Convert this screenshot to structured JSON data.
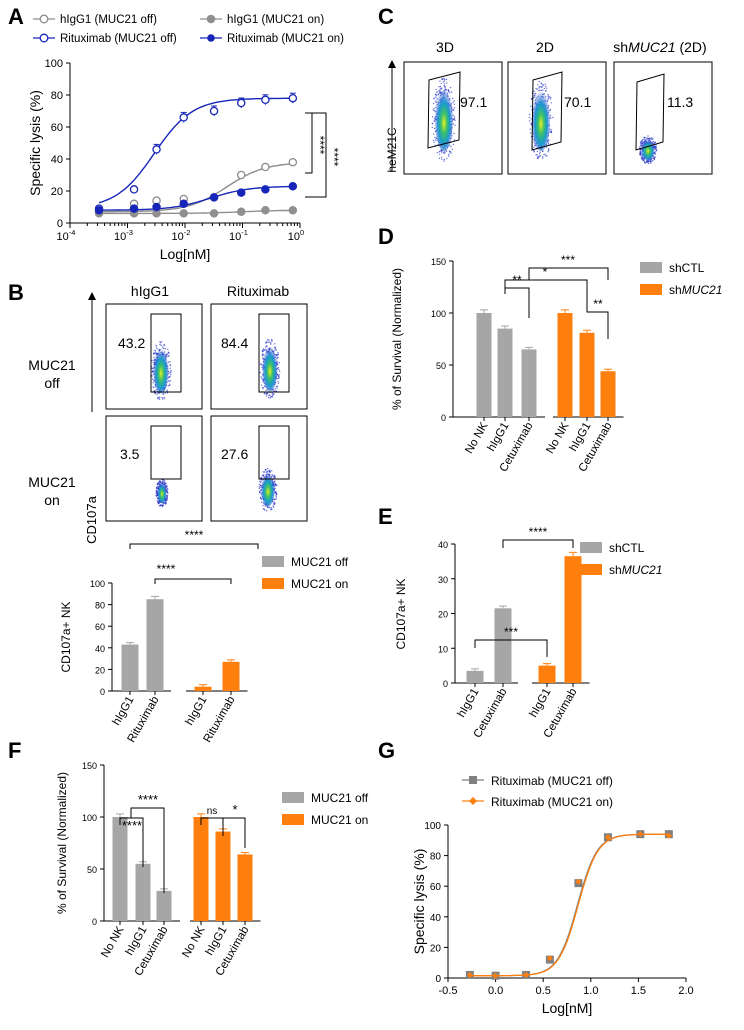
{
  "colors": {
    "grey": "#a6a6a6",
    "orange": "#ff7f0e",
    "navy": "#1726b8",
    "hollow_grey": "#8c8c8c",
    "filled_grey": "#8f8f8f",
    "curve_grey": "#808080"
  },
  "panel_letters": {
    "A": "A",
    "B": "B",
    "C": "C",
    "D": "D",
    "E": "E",
    "F": "F",
    "G": "G"
  },
  "chart_data": [
    {
      "id": "A",
      "type": "line",
      "xscale": "log",
      "xlabel": "Log[nM]",
      "ylabel": "Specific lysis (%)",
      "xlim": [
        0.0001,
        1
      ],
      "ylim": [
        0,
        100
      ],
      "xticks": [
        "10",
        "10",
        "10",
        "10",
        "10"
      ],
      "xtick_exponents": [
        "-4",
        "-3",
        "-2",
        "-1",
        "0"
      ],
      "yticks": [
        "0",
        "20",
        "40",
        "60",
        "80",
        "100"
      ],
      "series": [
        {
          "name": "hIgG1 (MUC21 off)",
          "marker": "hollow",
          "color": "#8c8c8c",
          "x": [
            0.00032,
            0.0013,
            0.0032,
            0.0095,
            0.032,
            0.095,
            0.25,
            0.75
          ],
          "y": [
            7,
            12,
            14,
            15,
            16,
            30,
            35,
            38
          ]
        },
        {
          "name": "hIgG1 (MUC21 on)",
          "marker": "filled",
          "color": "#8f8f8f",
          "x": [
            0.00032,
            0.0013,
            0.0032,
            0.0095,
            0.032,
            0.095,
            0.25,
            0.75
          ],
          "y": [
            6,
            6,
            6,
            6,
            6,
            7,
            8,
            8
          ]
        },
        {
          "name": "Rituximab (MUC21 off)",
          "marker": "hollow",
          "color": "#1726b8",
          "x": [
            0.00032,
            0.0013,
            0.0032,
            0.0095,
            0.032,
            0.095,
            0.25,
            0.75
          ],
          "y": [
            9,
            21,
            46,
            66,
            70,
            75,
            77,
            78
          ]
        },
        {
          "name": "Rituximab (MUC21 on)",
          "marker": "filled",
          "color": "#1726b8",
          "x": [
            0.00032,
            0.0013,
            0.0032,
            0.0095,
            0.032,
            0.095,
            0.25,
            0.75
          ],
          "y": [
            8,
            9,
            10,
            12,
            16,
            19,
            21,
            23
          ]
        }
      ],
      "significance": [
        "****",
        "****"
      ]
    },
    {
      "id": "B-bar",
      "type": "bar",
      "ylabel": "CD107a+ NK",
      "ylim": [
        0,
        100
      ],
      "yticks": [
        "0",
        "20",
        "40",
        "60",
        "80",
        "100"
      ],
      "categories": [
        "hIgG1",
        "Rituximab",
        "hIgG1",
        "Rituximab"
      ],
      "values": [
        43,
        85,
        4,
        27
      ],
      "groups": [
        "MUC21 off",
        "MUC21 off",
        "MUC21 on",
        "MUC21 on"
      ],
      "legend": [
        "MUC21 off",
        "MUC21 on"
      ],
      "significance": [
        "****",
        "****"
      ]
    },
    {
      "id": "D",
      "type": "bar",
      "ylabel": "% of Survival (Normalized)",
      "ylim": [
        0,
        150
      ],
      "yticks": [
        "0",
        "50",
        "100",
        "150"
      ],
      "categories": [
        "No NK",
        "hIgG1",
        "Cetuximab",
        "No NK",
        "hIgG1",
        "Cetuximab"
      ],
      "values": [
        100,
        85,
        65,
        100,
        81,
        44
      ],
      "groups": [
        "shCTL",
        "shCTL",
        "shCTL",
        "shMUC21",
        "shMUC21",
        "shMUC21"
      ],
      "legend": [
        {
          "prefix": "shCTL",
          "italic": ""
        },
        {
          "prefix": "sh",
          "italic": "MUC21"
        }
      ],
      "significance": [
        "**",
        "*",
        "***",
        "**"
      ]
    },
    {
      "id": "E",
      "type": "bar",
      "ylabel": "CD107a+ NK",
      "ylim": [
        0,
        40
      ],
      "yticks": [
        "0",
        "10",
        "20",
        "30",
        "40"
      ],
      "categories": [
        "hIgG1",
        "Cetuximab",
        "hIgG1",
        "Cetuximab"
      ],
      "values": [
        3.5,
        21.5,
        5,
        36.5
      ],
      "groups": [
        "shCTL",
        "shCTL",
        "shMUC21",
        "shMUC21"
      ],
      "legend": [
        {
          "prefix": "shCTL",
          "italic": ""
        },
        {
          "prefix": "sh",
          "italic": "MUC21"
        }
      ],
      "significance": [
        "***",
        "****"
      ]
    },
    {
      "id": "F",
      "type": "bar",
      "ylabel": "% of Survival (Normalized)",
      "ylim": [
        0,
        150
      ],
      "yticks": [
        "0",
        "50",
        "100",
        "150"
      ],
      "categories": [
        "No NK",
        "hIgG1",
        "Cetuximab",
        "No NK",
        "hIgG1",
        "Cetuximab"
      ],
      "values": [
        100,
        55,
        29,
        100,
        86,
        64
      ],
      "groups": [
        "MUC21 off",
        "MUC21 off",
        "MUC21 off",
        "MUC21 on",
        "MUC21 on",
        "MUC21 on"
      ],
      "legend": [
        "MUC21 off",
        "MUC21 on"
      ],
      "significance": [
        "****",
        "****",
        "ns",
        "*"
      ]
    },
    {
      "id": "G",
      "type": "line",
      "xlabel": "Log[nM]",
      "ylabel": "Specific lysis (%)",
      "xlim": [
        -0.5,
        2.0
      ],
      "ylim": [
        0,
        100
      ],
      "xticks": [
        "-0.5",
        "0.0",
        "0.5",
        "1.0",
        "1.5",
        "2.0"
      ],
      "yticks": [
        "0",
        "20",
        "40",
        "60",
        "80",
        "100"
      ],
      "series": [
        {
          "name": "Rituximab (MUC21 off)",
          "marker": "square",
          "color": "#808080",
          "x": [
            -0.27,
            0.0,
            0.32,
            0.57,
            0.87,
            1.18,
            1.52,
            1.82
          ],
          "y": [
            2,
            1.5,
            2,
            12,
            62,
            92,
            94,
            94
          ]
        },
        {
          "name": "Rituximab (MUC21 on)",
          "marker": "diamond",
          "color": "#ff7f0e",
          "x": [
            -0.27,
            0.0,
            0.32,
            0.57,
            0.87,
            1.18,
            1.52,
            1.82
          ],
          "y": [
            2,
            1.5,
            2,
            13,
            63,
            92,
            94,
            93
          ]
        }
      ]
    }
  ],
  "flow_B": {
    "col_headers": [
      "hIgG1",
      "Rituximab"
    ],
    "row_labels": [
      [
        "MUC21",
        "off"
      ],
      [
        "MUC21",
        "on"
      ]
    ],
    "axis_label": "CD107a",
    "values": [
      "43.2",
      "84.4",
      "3.5",
      "27.6"
    ]
  },
  "flow_C": {
    "headers": [
      {
        "prefix": "3D",
        "italic": "",
        "suffix": ""
      },
      {
        "prefix": "2D",
        "italic": "",
        "suffix": ""
      },
      {
        "prefix": "sh",
        "italic": "MUC21",
        "suffix": " (2D)"
      }
    ],
    "axis_label": "heM21C",
    "values": [
      "97.1",
      "70.1",
      "11.3"
    ]
  }
}
